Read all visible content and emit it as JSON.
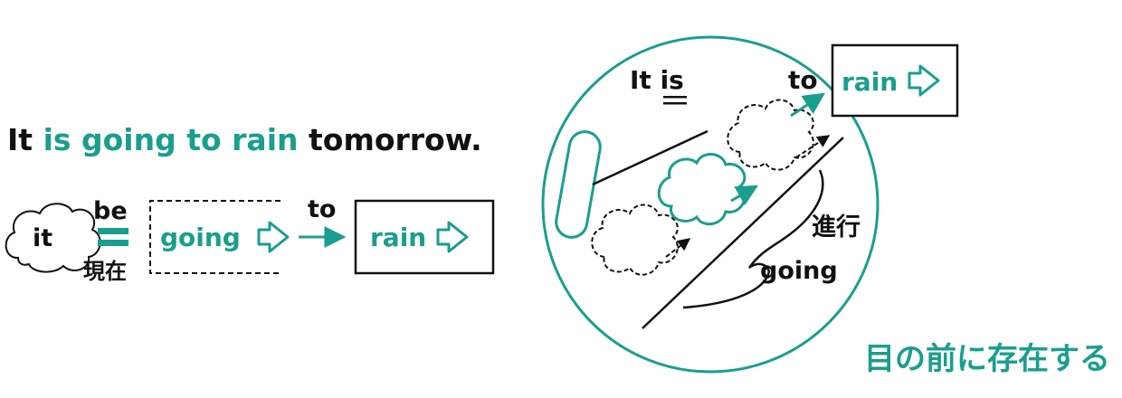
{
  "colors": {
    "accent": "#1a9e8e",
    "ink": "#111111",
    "background": "#ffffff"
  },
  "sentence": {
    "subject": "It",
    "highlight": "is going to rain",
    "tail": "tomorrow",
    "period": "."
  },
  "left_diagram": {
    "it_label": "it",
    "be_label": "be",
    "present_label": "現在",
    "going_label": "going",
    "to_label": "to",
    "rain_label": "rain"
  },
  "right_diagram": {
    "it_is_prefix": "It ",
    "it_is_verb": "is",
    "to_label": "to",
    "rain_label": "rain",
    "progressive_label": "進行",
    "going_label": "going",
    "caption": "目の前に存在する"
  }
}
